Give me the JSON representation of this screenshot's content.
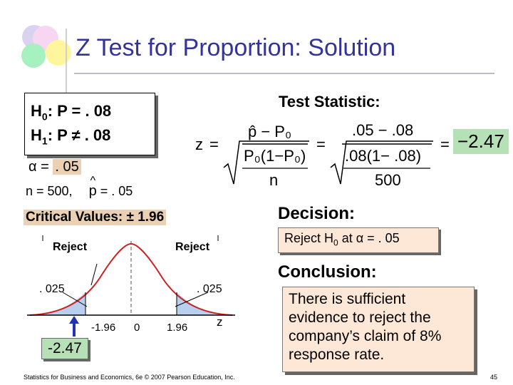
{
  "title": "Z Test for Proportion: Solution",
  "hypotheses": {
    "h0": {
      "label": "H",
      "sub": "0",
      "rest": ": P = . 08"
    },
    "h1": {
      "label": "H",
      "sub": "1",
      "rest": ": P ≠ . 08"
    }
  },
  "alpha": {
    "symbol": "α",
    "eq": " = ",
    "value": ". 05"
  },
  "sample": {
    "n_text": "n = 500,",
    "phat_symbol": "p",
    "phat_value": " = . 05"
  },
  "test_statistic": {
    "heading": "Test Statistic:",
    "z": "z",
    "eq": "=",
    "num_symbolic": "p̂ − P₀",
    "den_symbolic": "P₀(1−P₀)",
    "den_n": "n",
    "num_values": ".05 − .08",
    "den_values": ".08(1− .08)",
    "den_500": "500",
    "result": "−2.47"
  },
  "critical": {
    "label": "Critical Values: ± 1.96",
    "reject_left": "Reject",
    "reject_right": "Reject",
    "tail_left": ". 025",
    "tail_right": ". 025",
    "tick_neg": "-1.96",
    "tick_zero": "0",
    "tick_pos": "1.96",
    "axis_z": "z",
    "z_value": "-2.47"
  },
  "decision": {
    "heading": "Decision:",
    "text_pre": "Reject H",
    "text_sub": "0",
    "text_mid": " at ",
    "alpha_symbol": "α",
    "text_post": " = . 05"
  },
  "conclusion": {
    "heading": "Conclusion:",
    "text": "There is sufficient evidence to reject the company’s claim of 8% response rate."
  },
  "footer": "Statistics for Business and Economics, 6e © 2007 Pearson Education, Inc.",
  "page_number": "45",
  "colors": {
    "title": "#333399",
    "highlight_green": "#b6e0b6",
    "box_peach": "#fde8d7",
    "curve_red": "#cc2222",
    "tail_blue": "#b8cfee"
  }
}
